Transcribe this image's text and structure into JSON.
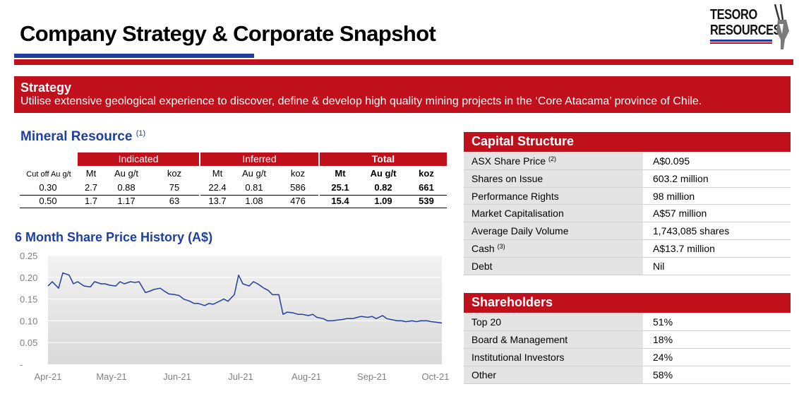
{
  "header": {
    "title": "Company Strategy & Corporate Snapshot",
    "logo_line1": "TESORO",
    "logo_line2": "RESOURCES"
  },
  "strategy": {
    "title": "Strategy",
    "text": "Utilise extensive geological experience to discover, define & develop high quality mining projects in the ‘Core Atacama’ province of Chile."
  },
  "mineral_resource": {
    "title": "Mineral Resource",
    "note": "(1)",
    "groups": [
      "Indicated",
      "Inferred",
      "Total"
    ],
    "subheaders": [
      "Cut off Au g/t",
      "Mt",
      "Au g/t",
      "koz",
      "Mt",
      "Au g/t",
      "koz",
      "Mt",
      "Au g/t",
      "koz"
    ],
    "rows": [
      [
        "0.30",
        "2.7",
        "0.88",
        "75",
        "22.4",
        "0.81",
        "586",
        "25.1",
        "0.82",
        "661"
      ],
      [
        "0.50",
        "1.7",
        "1.17",
        "63",
        "13.7",
        "1.08",
        "476",
        "15.4",
        "1.09",
        "539"
      ]
    ]
  },
  "capital_structure": {
    "title": "Capital Structure",
    "rows": [
      {
        "label": "ASX Share Price",
        "note": "(2)",
        "value": "A$0.095"
      },
      {
        "label": "Shares on Issue",
        "note": "",
        "value": "603.2 million"
      },
      {
        "label": "Performance Rights",
        "note": "",
        "value": "98 million"
      },
      {
        "label": "Market Capitalisation",
        "note": "",
        "value": "A$57 million"
      },
      {
        "label": "Average Daily Volume",
        "note": "",
        "value": "1,743,085 shares"
      },
      {
        "label": "Cash",
        "note": "(3)",
        "value": "A$13.7 million"
      },
      {
        "label": "Debt",
        "note": "",
        "value": "Nil"
      }
    ]
  },
  "shareholders": {
    "title": "Shareholders",
    "rows": [
      {
        "label": "Top 20",
        "value": "51%"
      },
      {
        "label": "Board & Management",
        "value": "18%"
      },
      {
        "label": "Institutional Investors",
        "value": "24%"
      },
      {
        "label": "Other",
        "value": "58%"
      }
    ]
  },
  "chart_data": {
    "type": "area",
    "title": "6 Month Share Price History (A$)",
    "xlabel": "",
    "ylabel": "",
    "y_tick_labels": [
      "0.25",
      "0.20",
      "0.15",
      "0.10",
      "0.05",
      "-"
    ],
    "y_ticks": [
      0.25,
      0.2,
      0.15,
      0.1,
      0.05,
      0
    ],
    "x_tick_labels": [
      "Apr-21",
      "May-21",
      "Jun-21",
      "Jul-21",
      "Aug-21",
      "Sep-21",
      "Oct-21"
    ],
    "x_ticks": [
      "2021-04-01",
      "2021-05-01",
      "2021-06-01",
      "2021-07-01",
      "2021-08-01",
      "2021-09-01",
      "2021-10-01"
    ],
    "ylim": [
      0,
      0.25
    ],
    "xlim": [
      "2021-04-01",
      "2021-10-04"
    ],
    "grid": true,
    "colors": {
      "line": "#1f3fa0",
      "fill_top": "#f2f2f2",
      "fill_bottom": "#d9d9d9"
    },
    "series": [
      {
        "x": [
          "2021-04-01",
          "2021-04-03",
          "2021-04-06",
          "2021-04-08",
          "2021-04-11",
          "2021-04-13",
          "2021-04-15",
          "2021-04-18",
          "2021-04-21",
          "2021-04-23",
          "2021-04-26",
          "2021-04-28",
          "2021-04-30",
          "2021-05-03",
          "2021-05-05",
          "2021-05-07",
          "2021-05-10",
          "2021-05-12",
          "2021-05-14",
          "2021-05-17",
          "2021-05-19",
          "2021-05-21",
          "2021-05-24",
          "2021-05-26",
          "2021-05-28",
          "2021-05-31",
          "2021-06-02",
          "2021-06-04",
          "2021-06-07",
          "2021-06-09",
          "2021-06-11",
          "2021-06-14",
          "2021-06-16",
          "2021-06-18",
          "2021-06-21",
          "2021-06-23",
          "2021-06-25",
          "2021-06-28",
          "2021-06-30",
          "2021-07-02",
          "2021-07-05",
          "2021-07-07",
          "2021-07-09",
          "2021-07-12",
          "2021-07-14",
          "2021-07-16",
          "2021-07-19",
          "2021-07-21",
          "2021-07-23",
          "2021-07-26",
          "2021-07-28",
          "2021-07-30",
          "2021-08-02",
          "2021-08-04",
          "2021-08-06",
          "2021-08-09",
          "2021-08-11",
          "2021-08-13",
          "2021-08-16",
          "2021-08-18",
          "2021-08-20",
          "2021-08-23",
          "2021-08-25",
          "2021-08-27",
          "2021-08-30",
          "2021-09-01",
          "2021-09-03",
          "2021-09-06",
          "2021-09-08",
          "2021-09-10",
          "2021-09-13",
          "2021-09-15",
          "2021-09-17",
          "2021-09-20",
          "2021-09-22",
          "2021-09-24",
          "2021-09-27",
          "2021-09-29",
          "2021-10-01",
          "2021-10-04"
        ],
        "y": [
          0.18,
          0.19,
          0.175,
          0.21,
          0.205,
          0.185,
          0.19,
          0.18,
          0.178,
          0.19,
          0.185,
          0.185,
          0.182,
          0.18,
          0.19,
          0.185,
          0.19,
          0.188,
          0.19,
          0.165,
          0.168,
          0.172,
          0.175,
          0.168,
          0.162,
          0.16,
          0.158,
          0.15,
          0.145,
          0.14,
          0.14,
          0.135,
          0.14,
          0.138,
          0.145,
          0.15,
          0.145,
          0.16,
          0.205,
          0.185,
          0.18,
          0.19,
          0.185,
          0.175,
          0.17,
          0.16,
          0.16,
          0.115,
          0.12,
          0.118,
          0.115,
          0.115,
          0.112,
          0.115,
          0.108,
          0.105,
          0.1,
          0.1,
          0.102,
          0.103,
          0.105,
          0.105,
          0.108,
          0.11,
          0.108,
          0.11,
          0.105,
          0.112,
          0.105,
          0.103,
          0.1,
          0.1,
          0.098,
          0.1,
          0.098,
          0.1,
          0.1,
          0.098,
          0.097,
          0.095
        ]
      }
    ]
  }
}
